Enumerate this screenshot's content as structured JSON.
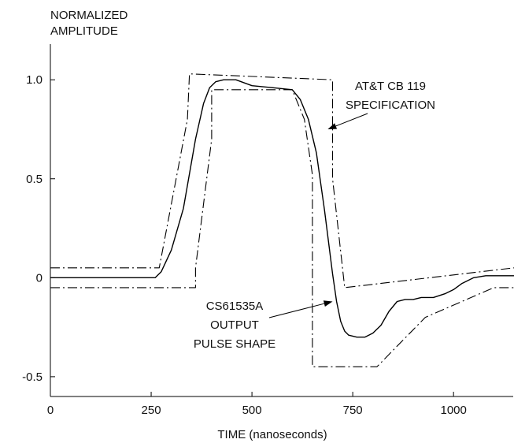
{
  "chart_data": {
    "type": "line",
    "title_lines": [
      "NORMALIZED",
      "AMPLITUDE"
    ],
    "xlabel": "TIME  (nanoseconds)",
    "ylabel": "",
    "xlim": [
      0,
      1150
    ],
    "ylim": [
      -0.6,
      1.18
    ],
    "x_ticks": [
      {
        "value": 0,
        "label": "0"
      },
      {
        "value": 250,
        "label": "250"
      },
      {
        "value": 500,
        "label": "500"
      },
      {
        "value": 750,
        "label": "750"
      },
      {
        "value": 1000,
        "label": "1000"
      }
    ],
    "y_ticks": [
      {
        "value": 1.0,
        "label": "1.0"
      },
      {
        "value": 0.5,
        "label": "0.5"
      },
      {
        "value": 0,
        "label": "0"
      },
      {
        "value": -0.5,
        "label": "-0.5"
      }
    ],
    "grid": false,
    "series": [
      {
        "key": "pulse",
        "style": "solid",
        "color": "#000000",
        "x": [
          0,
          260,
          275,
          300,
          330,
          360,
          380,
          395,
          410,
          430,
          460,
          500,
          550,
          600,
          620,
          640,
          660,
          680,
          700,
          710,
          720,
          730,
          740,
          760,
          780,
          800,
          820,
          840,
          860,
          880,
          900,
          920,
          950,
          980,
          1000,
          1020,
          1050,
          1080,
          1100,
          1150
        ],
        "y": [
          0,
          0,
          0.03,
          0.14,
          0.35,
          0.7,
          0.88,
          0.96,
          0.99,
          1.0,
          1.0,
          0.97,
          0.96,
          0.95,
          0.9,
          0.8,
          0.63,
          0.34,
          0.02,
          -0.12,
          -0.22,
          -0.27,
          -0.29,
          -0.3,
          -0.3,
          -0.28,
          -0.24,
          -0.17,
          -0.12,
          -0.11,
          -0.11,
          -0.1,
          -0.1,
          -0.08,
          -0.06,
          -0.03,
          0.0,
          0.01,
          0.01,
          0.01
        ]
      },
      {
        "key": "upper",
        "style": "dash-dot",
        "color": "#000000",
        "x": [
          0,
          260,
          270,
          340,
          345,
          345,
          700,
          700,
          700,
          730,
          1150
        ],
        "y": [
          0.05,
          0.05,
          0.05,
          0.8,
          1.03,
          1.03,
          1.0,
          0.9,
          0.5,
          -0.05,
          0.05
        ]
      },
      {
        "key": "lower",
        "style": "dash-dot",
        "color": "#000000",
        "x": [
          0,
          360,
          360,
          400,
          400,
          600,
          630,
          650,
          650,
          810,
          930,
          1100,
          1150
        ],
        "y": [
          -0.05,
          -0.05,
          0.05,
          0.7,
          0.95,
          0.95,
          0.8,
          0.52,
          -0.45,
          -0.45,
          -0.2,
          -0.05,
          -0.05
        ]
      }
    ],
    "annotations": [
      {
        "key": "spec",
        "lines": [
          "AT&T  CB 119",
          "SPECIFICATION"
        ],
        "points_to": {
          "x": 688,
          "y": 0.75
        }
      },
      {
        "key": "output",
        "lines": [
          "CS61535A",
          "OUTPUT",
          "PULSE SHAPE"
        ],
        "points_to": {
          "x": 700,
          "y": -0.12
        }
      }
    ]
  }
}
